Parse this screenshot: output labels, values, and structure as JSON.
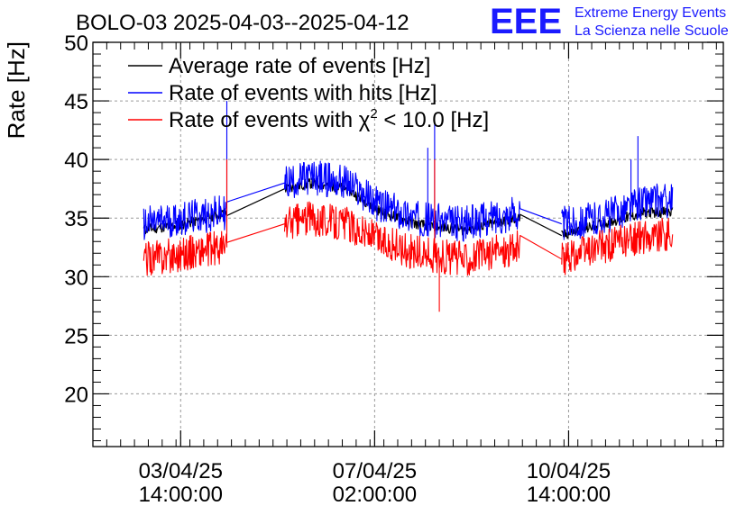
{
  "chart_data": {
    "type": "line",
    "title": "BOLO-03 2025-04-03--2025-04-12",
    "ylabel": "Rate [Hz]",
    "xlabel": "",
    "ylim": [
      15.5,
      50
    ],
    "grid": true,
    "legend_position": "top-left",
    "y_ticks": [
      20,
      25,
      30,
      35,
      40,
      45,
      50
    ],
    "x_ticks": [
      {
        "t": 38,
        "line1": "03/04/25",
        "line2": "14:00:00"
      },
      {
        "t": 122,
        "line1": "07/04/25",
        "line2": "02:00:00"
      },
      {
        "t": 206,
        "line1": "10/04/25",
        "line2": "14:00:00"
      }
    ],
    "x_unit": "hours since 2025-04-02 00:00",
    "xlim": [
      0,
      273
    ],
    "segments": [
      [
        22,
        58
      ],
      [
        83,
        185
      ],
      [
        203,
        251
      ]
    ],
    "series": [
      {
        "name": "Average rate of events [Hz]",
        "color": "#000000",
        "points": [
          [
            22,
            34.0
          ],
          [
            40,
            34.5
          ],
          [
            58,
            35.5
          ],
          [
            83,
            37.5
          ],
          [
            95,
            38.0
          ],
          [
            110,
            37.5
          ],
          [
            125,
            35.5
          ],
          [
            140,
            34.5
          ],
          [
            160,
            34.0
          ],
          [
            185,
            35.0
          ],
          [
            203,
            33.5
          ],
          [
            220,
            34.5
          ],
          [
            240,
            35.5
          ],
          [
            251,
            35.5
          ]
        ]
      },
      {
        "name": "Rate of events with hits [Hz]",
        "color": "#0000ff",
        "points": [
          [
            22,
            34.5
          ],
          [
            40,
            35.0
          ],
          [
            58,
            35.5
          ],
          [
            83,
            38.0
          ],
          [
            95,
            38.5
          ],
          [
            110,
            38.0
          ],
          [
            125,
            36.0
          ],
          [
            140,
            35.0
          ],
          [
            160,
            34.5
          ],
          [
            185,
            35.5
          ],
          [
            203,
            34.5
          ],
          [
            220,
            35.0
          ],
          [
            240,
            36.5
          ],
          [
            251,
            36.5
          ]
        ],
        "spikes": [
          [
            58,
            45.0
          ],
          [
            145,
            41.0
          ],
          [
            148,
            43.0
          ],
          [
            236,
            42.0
          ],
          [
            233,
            40.0
          ]
        ]
      },
      {
        "name": "Rate of events with χ² < 10.0 [Hz]",
        "color": "#ff0000",
        "points": [
          [
            22,
            31.5
          ],
          [
            40,
            32.0
          ],
          [
            58,
            32.5
          ],
          [
            83,
            34.5
          ],
          [
            95,
            35.0
          ],
          [
            110,
            34.5
          ],
          [
            125,
            33.0
          ],
          [
            140,
            32.0
          ],
          [
            160,
            31.5
          ],
          [
            185,
            32.5
          ],
          [
            203,
            31.5
          ],
          [
            220,
            32.5
          ],
          [
            240,
            33.5
          ],
          [
            251,
            33.5
          ]
        ],
        "spikes": [
          [
            58,
            40.0
          ],
          [
            148,
            40.0
          ],
          [
            150,
            27.0
          ]
        ]
      }
    ],
    "legend": [
      {
        "label": "Average rate of events [Hz]",
        "color": "#000000"
      },
      {
        "label": "Rate of events with hits [Hz]",
        "color": "#0000ff"
      },
      {
        "label": "Rate of events with χ",
        "sup": "2",
        "label_after": " < 10.0 [Hz]",
        "color": "#ff0000"
      }
    ]
  },
  "logo": {
    "mark": "EEE",
    "line1": "Extreme Energy Events",
    "line2": "La Scienza nelle Scuole",
    "color": "#1a1aff"
  }
}
